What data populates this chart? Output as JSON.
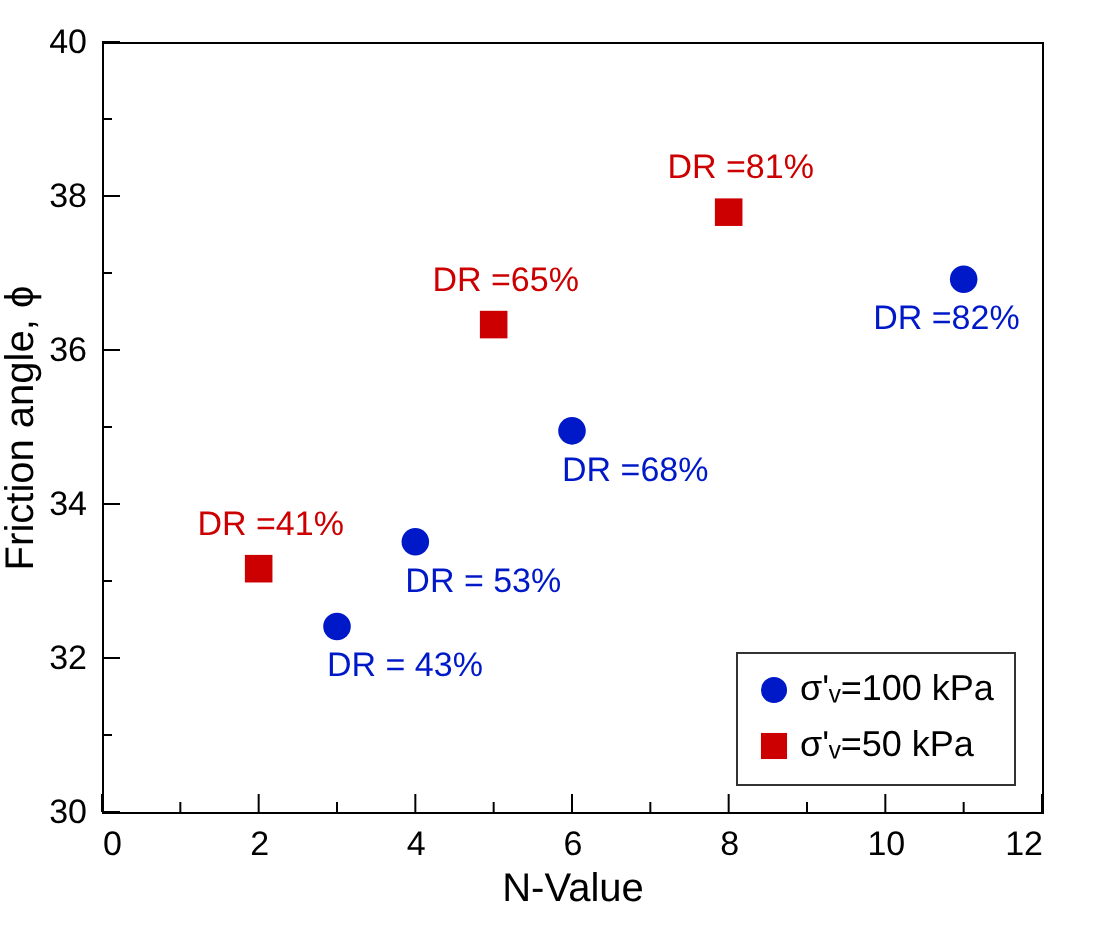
{
  "chart_data": {
    "type": "scatter",
    "xlabel": "N-Value",
    "ylabel": "Friction angle, ϕ",
    "xlim": [
      0,
      12
    ],
    "xticks": [
      0,
      {
        "value": 1,
        "label": null
      },
      2,
      {
        "value": 3,
        "label": null
      },
      4,
      {
        "value": 5,
        "label": null
      },
      6,
      {
        "value": 7,
        "label": null
      },
      8,
      {
        "value": 9,
        "label": null
      },
      10,
      {
        "value": 11,
        "label": null
      },
      12
    ],
    "ylim": [
      30,
      40
    ],
    "yticks": [
      30,
      {
        "value": 31,
        "label": null
      },
      32,
      {
        "value": 33,
        "label": null
      },
      34,
      {
        "value": 35,
        "label": null
      },
      36,
      {
        "value": 37,
        "label": null
      },
      38,
      {
        "value": 39,
        "label": null
      },
      40
    ],
    "grid": false,
    "legend": "bottom right",
    "series": [
      {
        "name": "σ'ᵥ=100 kPa",
        "color": "#0019c8",
        "marker": "circle",
        "x": [
          3,
          4,
          6,
          11
        ],
        "values": [
          32.41,
          33.51,
          34.95,
          36.92
        ]
      },
      {
        "name": "σ'ᵥ=50 kPa",
        "color": "#cc0000",
        "marker": "square",
        "x": [
          2,
          5,
          8
        ],
        "values": [
          33.16,
          36.33,
          37.79
        ]
      }
    ],
    "annotations": [
      {
        "text": "DR = 43%",
        "x": 3,
        "y": 32.41
      },
      {
        "text": "DR = 53%",
        "x": 4,
        "y": 33.51
      },
      {
        "text": "DR =68%",
        "x": 6,
        "y": 34.95
      },
      {
        "text": "DR =82%",
        "x": 11,
        "y": 36.92
      },
      {
        "text": "DR =41%",
        "x": 2,
        "y": 33.16
      },
      {
        "text": "DR =65%",
        "x": 5,
        "y": 36.33
      },
      {
        "text": "DR =81%",
        "x": 8,
        "y": 37.79
      }
    ]
  }
}
